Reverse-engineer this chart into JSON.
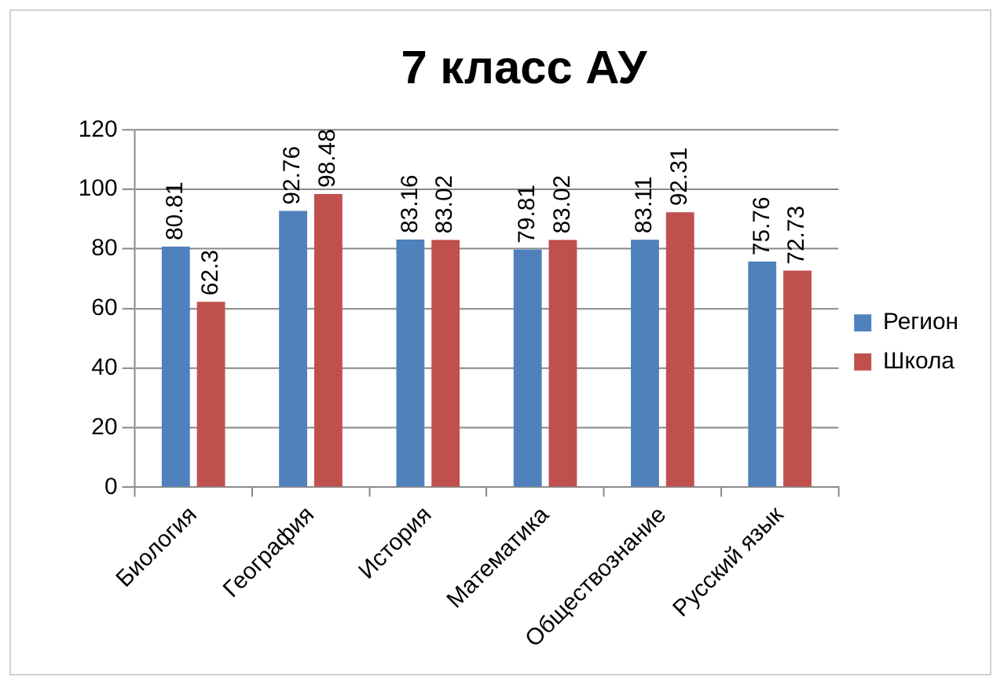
{
  "chart_data": {
    "type": "bar",
    "title": "7 класс АУ",
    "categories": [
      "Биология",
      "География",
      "История",
      "Математика",
      "Обществознание",
      "Русский язык"
    ],
    "series": [
      {
        "name": "Регион",
        "color": "#4f81bd",
        "values": [
          80.81,
          92.76,
          83.16,
          79.81,
          83.11,
          75.76
        ]
      },
      {
        "name": "Школа",
        "color": "#c0504d",
        "values": [
          62.3,
          98.48,
          83.02,
          83.02,
          92.31,
          72.73
        ]
      }
    ],
    "ylim": [
      0,
      120
    ],
    "yticks": [
      0,
      20,
      40,
      60,
      80,
      100,
      120
    ],
    "grid": "y",
    "legend": "right",
    "data_labels": true
  }
}
